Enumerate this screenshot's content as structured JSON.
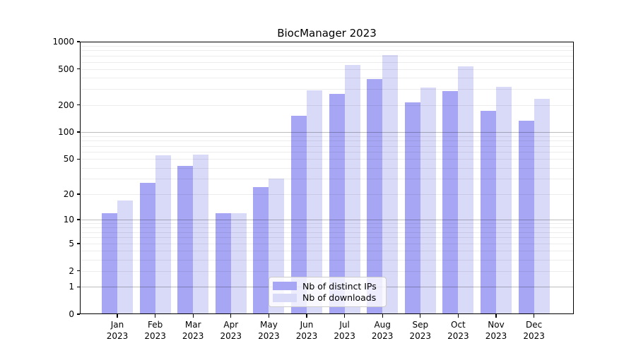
{
  "title": "BiocManager 2023",
  "chart_data": {
    "type": "bar",
    "title": "BiocManager 2023",
    "categories": [
      "Jan",
      "Feb",
      "Mar",
      "Apr",
      "May",
      "Jun",
      "Jul",
      "Aug",
      "Sep",
      "Oct",
      "Nov",
      "Dec"
    ],
    "year": "2023",
    "series": [
      {
        "name": "Nb of distinct IPs",
        "color": "#a6a6f4",
        "values": [
          12,
          27,
          42,
          12,
          24,
          153,
          265,
          385,
          215,
          285,
          172,
          135
        ]
      },
      {
        "name": "Nb of downloads",
        "color": "#d9d9f8",
        "values": [
          17,
          55,
          56,
          12,
          30,
          290,
          555,
          710,
          310,
          530,
          320,
          235
        ]
      }
    ],
    "xlabel": "",
    "ylabel": "",
    "y_scale": "log1p",
    "ylim": [
      0,
      1000
    ],
    "y_ticks": [
      0,
      1,
      2,
      5,
      10,
      20,
      50,
      100,
      200,
      500,
      1000
    ],
    "grid_minor": [
      2,
      3,
      4,
      6,
      7,
      8,
      9,
      20,
      30,
      40,
      60,
      70,
      80,
      90,
      200,
      300,
      400,
      600,
      700,
      800,
      900,
      5,
      50,
      500
    ],
    "grid_major": [
      1,
      10,
      100,
      1000
    ],
    "legend_position": "inside-bottom-center"
  }
}
